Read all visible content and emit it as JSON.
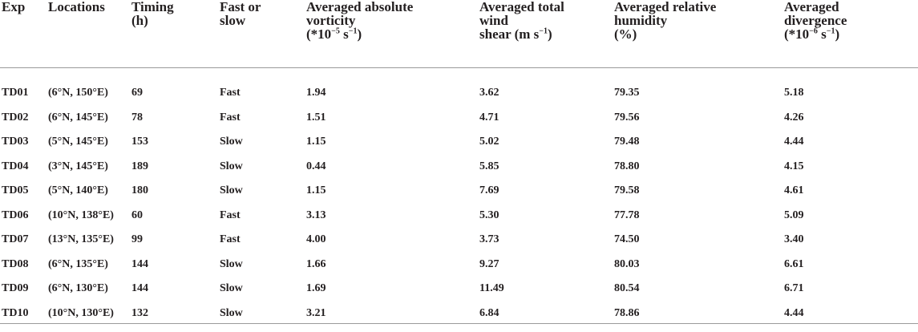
{
  "columns": [
    {
      "line1": "Exp",
      "line2": "",
      "line3_pre": "",
      "line3_sup": "",
      "line3_post": ""
    },
    {
      "line1": "Locations",
      "line2": "",
      "line3_pre": "",
      "line3_sup": "",
      "line3_post": ""
    },
    {
      "line1": "Timing",
      "line2": "(h)",
      "line3_pre": "",
      "line3_sup": "",
      "line3_post": ""
    },
    {
      "line1": "Fast or",
      "line2": "slow",
      "line3_pre": "",
      "line3_sup": "",
      "line3_post": ""
    },
    {
      "line1": "Averaged absolute",
      "line2": "vorticity",
      "line3_pre": "(*10",
      "line3_sup": "−5",
      "line3_post": " s",
      "line3_sup2": "−1",
      "line3_end": ")"
    },
    {
      "line1": "Averaged total",
      "line2": "wind",
      "line3_pre": "shear (m s",
      "line3_sup": "−1",
      "line3_post": ")",
      "line3_sup2": "",
      "line3_end": ""
    },
    {
      "line1": "Averaged relative",
      "line2": "humidity",
      "line3_pre": "(%)",
      "line3_sup": "",
      "line3_post": "",
      "line3_sup2": "",
      "line3_end": ""
    },
    {
      "line1": "Averaged",
      "line2": "divergence",
      "line3_pre": "(*10",
      "line3_sup": "−6",
      "line3_post": " s",
      "line3_sup2": "−1",
      "line3_end": ")"
    }
  ],
  "rows": [
    [
      "TD01",
      "(6°N, 150°E)",
      "69",
      "Fast",
      "1.94",
      "3.62",
      "79.35",
      "5.18"
    ],
    [
      "TD02",
      "(6°N, 145°E)",
      "78",
      "Fast",
      "1.51",
      "4.71",
      "79.56",
      "4.26"
    ],
    [
      "TD03",
      "(5°N, 145°E)",
      "153",
      "Slow",
      "1.15",
      "5.02",
      "79.48",
      "4.44"
    ],
    [
      "TD04",
      "(3°N, 145°E)",
      "189",
      "Slow",
      "0.44",
      "5.85",
      "78.80",
      "4.15"
    ],
    [
      "TD05",
      "(5°N, 140°E)",
      "180",
      "Slow",
      "1.15",
      "7.69",
      "79.58",
      "4.61"
    ],
    [
      "TD06",
      "(10°N, 138°E)",
      "60",
      "Fast",
      "3.13",
      "5.30",
      "77.78",
      "5.09"
    ],
    [
      "TD07",
      "(13°N, 135°E)",
      "99",
      "Fast",
      "4.00",
      "3.73",
      "74.50",
      "3.40"
    ],
    [
      "TD08",
      "(6°N, 135°E)",
      "144",
      "Slow",
      "1.66",
      "9.27",
      "80.03",
      "6.61"
    ],
    [
      "TD09",
      "(6°N, 130°E)",
      "144",
      "Slow",
      "1.69",
      "11.49",
      "80.54",
      "6.71"
    ],
    [
      "TD10",
      "(10°N, 130°E)",
      "132",
      "Slow",
      "3.21",
      "6.84",
      "78.86",
      "4.44"
    ]
  ]
}
